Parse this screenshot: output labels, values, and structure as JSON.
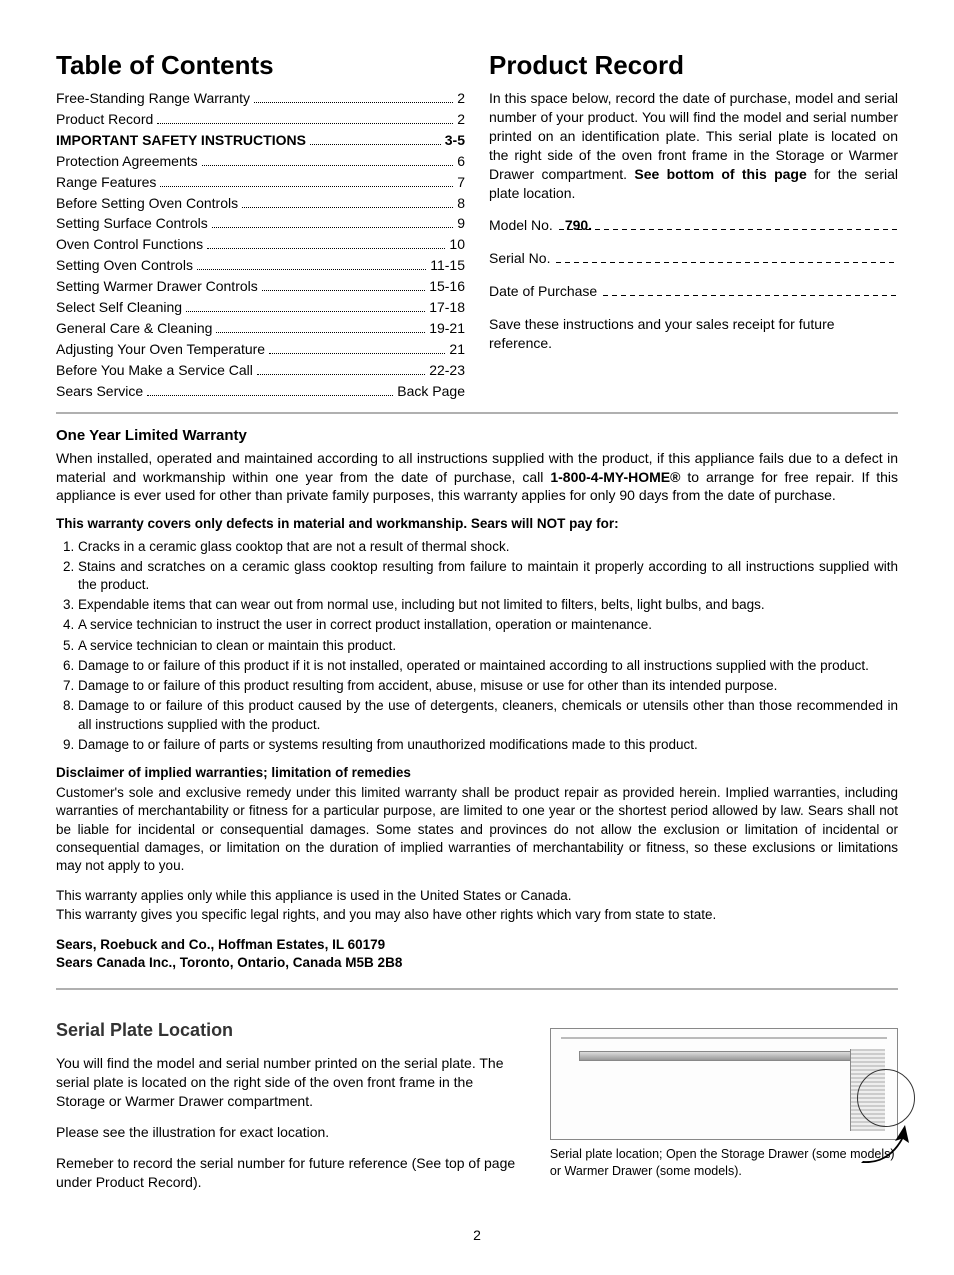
{
  "toc": {
    "heading": "Table of Contents",
    "items": [
      {
        "label": "Free-Standing Range Warranty",
        "page": "2",
        "bold": false
      },
      {
        "label": "Product Record",
        "page": "2",
        "bold": false
      },
      {
        "label": "IMPORTANT SAFETY INSTRUCTIONS",
        "page": "3-5",
        "bold": true
      },
      {
        "label": "Protection Agreements",
        "page": "6",
        "bold": false
      },
      {
        "label": "Range Features",
        "page": "7",
        "bold": false
      },
      {
        "label": "Before Setting Oven Controls",
        "page": "8",
        "bold": false
      },
      {
        "label": "Setting Surface Controls",
        "page": "9",
        "bold": false
      },
      {
        "label": "Oven Control Functions",
        "page": "10",
        "bold": false
      },
      {
        "label": "Setting Oven Controls",
        "page": "11-15",
        "bold": false
      },
      {
        "label": "Setting Warmer Drawer Controls",
        "page": "15-16",
        "bold": false
      },
      {
        "label": "Select Self Cleaning",
        "page": "17-18",
        "bold": false
      },
      {
        "label": "General Care & Cleaning",
        "page": "19-21",
        "bold": false
      },
      {
        "label": "Adjusting Your Oven Temperature",
        "page": "21",
        "bold": false
      },
      {
        "label": "Before You Make a Service Call",
        "page": "22-23",
        "bold": false
      },
      {
        "label": "Sears Service",
        "page": "Back Page",
        "bold": false
      }
    ]
  },
  "record": {
    "heading": "Product Record",
    "intro_a": "In this space below, record the date of purchase, model and serial number of your product. You will find the model and serial number printed on an identification plate. This serial plate is located on the right side of the oven front frame in the Storage or Warmer Drawer compartment. ",
    "intro_b": "See bottom of this page",
    "intro_c": " for the serial plate location.",
    "model_label": "Model No.",
    "model_value": "790.",
    "serial_label": "Serial No.",
    "date_label": "Date of Purchase",
    "save": "Save these instructions and your sales receipt for future reference."
  },
  "warranty": {
    "heading": "One Year Limited Warranty",
    "p1a": "When installed, operated and maintained according to all instructions supplied with the product, if this appliance fails due to a defect in material and workmanship within one year from the date of purchase, call ",
    "p1b": "1-800-4-MY-HOME®",
    "p1c": " to arrange for free repair. If this appliance is ever used for other than private family purposes, this warranty applies for only 90 days from the date of purchase.",
    "not_pay_heading": "This warranty covers only defects in material and workmanship. Sears will NOT pay for:",
    "exclusions": [
      "Cracks in a ceramic glass cooktop that are not a result of thermal shock.",
      "Stains and scratches on a ceramic glass cooktop resulting from failure to maintain it properly according to all instructions supplied with the product.",
      "Expendable items that can wear out from normal use, including but not limited to filters, belts, light bulbs, and bags.",
      "A service technician to instruct the user in correct product installation, operation or maintenance.",
      "A service technician to clean or maintain this product.",
      "Damage to or failure of this product if it is not installed, operated or maintained according to all instructions supplied with the product.",
      "Damage to or failure of this product resulting from accident, abuse, misuse or use for other than its intended purpose.",
      "Damage to or failure of this product caused by the use of detergents, cleaners, chemicals or utensils other than those recommended in all instructions supplied with the product.",
      "Damage to or failure of parts or systems resulting from unauthorized modifications made to this product."
    ],
    "disclaimer_heading": "Disclaimer of implied warranties; limitation of remedies",
    "disclaimer_body": "Customer's sole and exclusive remedy under this limited warranty shall be product repair as provided herein. Implied warranties, including warranties of merchantability or fitness for a particular purpose, are limited to one year or the shortest period allowed by law. Sears shall not be liable for incidental or consequential damages. Some states and provinces do not allow the exclusion or limitation of incidental or consequential damages, or limitation on the duration of implied warranties of merchantability or fitness, so these exclusions or limitations may not apply to you.",
    "applies1": "This warranty applies only while this appliance is used in the United States or Canada.",
    "applies2": "This warranty gives you specific legal rights, and you may also have other rights which vary from state to state.",
    "addr1": "Sears, Roebuck and Co., Hoffman Estates, IL 60179",
    "addr2": "Sears Canada Inc., Toronto, Ontario, Canada M5B 2B8"
  },
  "serial": {
    "heading": "Serial Plate Location",
    "p1": "You will find the model and serial number printed on the serial plate. The serial plate is located on the right side of the oven front frame in the Storage or Warmer Drawer compartment.",
    "p2": "Please see the illustration for exact location.",
    "p3": "Remeber to record the serial number for future reference (See top of page under Product Record).",
    "caption": "Serial plate location; Open the Storage Drawer (some models) or Warmer Drawer (some models)."
  },
  "page_number": "2"
}
